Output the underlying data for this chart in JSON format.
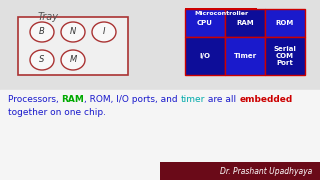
{
  "bg_color": "#e8e8e8",
  "top_bg": "#e8e8e8",
  "bottom_bg": "#ffffff",
  "title_text": "Tray",
  "microcontroller_label": "Microcontroller",
  "grid_cells": [
    {
      "label": "CPU",
      "col": 0,
      "row": 0
    },
    {
      "label": "RAM",
      "col": 1,
      "row": 0
    },
    {
      "label": "ROM",
      "col": 2,
      "row": 0
    },
    {
      "label": "I/O",
      "col": 0,
      "row": 1
    },
    {
      "label": "Timer",
      "col": 1,
      "row": 1
    },
    {
      "label": "Serial\nCOM\nPort",
      "col": 2,
      "row": 1
    }
  ],
  "grid_bg": "#1a1acc",
  "grid_bg_dark": "#0a0a88",
  "grid_border": "#cc0000",
  "grid_text": "#ffffff",
  "mc_label_bg": "#cc0000",
  "mc_label_text": "#ffffff",
  "tray_color": "#aa3333",
  "footer_bg": "#6a0a18",
  "footer_text": "Dr. Prashant Upadhyaya",
  "footer_text_color": "#ffffff",
  "parts_line1": [
    {
      "text": "Processors, ",
      "color": "#1a1acc",
      "bold": false
    },
    {
      "text": "RAM",
      "color": "#00aa00",
      "bold": true
    },
    {
      "text": ", ROM, I/O ports, and ",
      "color": "#1a1acc",
      "bold": false
    },
    {
      "text": "timer",
      "color": "#00aaaa",
      "bold": false
    },
    {
      "text": " are all ",
      "color": "#1a1acc",
      "bold": false
    },
    {
      "text": "embedded",
      "color": "#cc0000",
      "bold": true
    }
  ],
  "parts_line2": [
    {
      "text": "together on one chip.",
      "color": "#1a1acc",
      "bold": false
    }
  ]
}
